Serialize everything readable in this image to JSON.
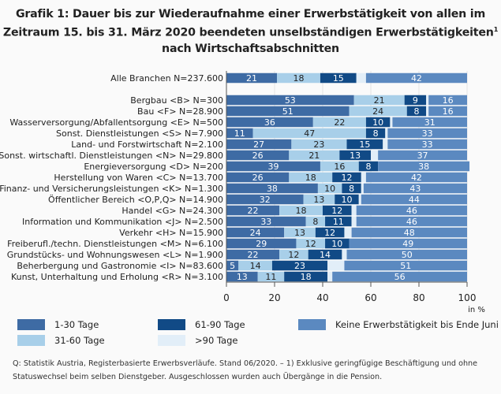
{
  "chart_data": {
    "type": "bar",
    "orientation": "horizontal",
    "stacked": true,
    "title_lines": [
      "Grafik 1: Dauer bis zur Wiederaufnahme einer Erwerbstätigkeit von allen im",
      "Zeitraum 15. bis 31. März 2020 beendeten unselbständigen Erwerbstätigkeiten",
      "nach Wirtschaftsabschnitten"
    ],
    "title_footnote_mark": "1",
    "xlabel": "in %",
    "xlim": [
      0,
      100
    ],
    "xticks": [
      "0",
      "20",
      "40",
      "60",
      "80",
      "100"
    ],
    "grid": true,
    "legend_position": "bottom",
    "categories": [
      "Alle Branchen N=237.600",
      "Bergbau <B> N=300",
      "Bau <F> N=28.900",
      "Wasserversorgung/Abfallentsorgung <E> N=500",
      "Sonst. Dienstleistungen <S> N=7.900",
      "Land- und Forstwirtschaft N=2.100",
      "Sonst. wirtschaftl. Dienstleistungen <N> N=29.800",
      "Energieversorgung <D> N=200",
      "Herstellung von Waren <C> N=13.700",
      "Finanz- und Versicherungsleistungen <K> N=1.300",
      "Öffentlicher Bereich <O,P,Q> N=14.900",
      "Handel <G> N=24.300",
      "Information und Kommunikation <J> N=2.500",
      "Verkehr <H> N=15.900",
      "Freiberufl./techn. Dienstleistungen <M> N=6.100",
      "Grundstücks- und Wohnungswesen <L> N=1.900",
      "Beherbergung und Gastronomie <I> N=83.600",
      "Kunst, Unterhaltung und Erholung <R> N=3.100"
    ],
    "series": [
      {
        "name": "1-30 Tage",
        "color": "#3e6ba4",
        "labeled": true,
        "values": [
          21,
          53,
          51,
          36,
          11,
          27,
          26,
          39,
          26,
          38,
          32,
          22,
          33,
          24,
          29,
          22,
          5,
          13
        ]
      },
      {
        "name": "31-60 Tage",
        "color": "#a8cfe9",
        "labeled": true,
        "values": [
          18,
          21,
          24,
          22,
          47,
          23,
          21,
          16,
          18,
          10,
          13,
          18,
          8,
          13,
          12,
          12,
          14,
          11
        ]
      },
      {
        "name": "61-90 Tage",
        "color": "#114a86",
        "labeled": true,
        "values": [
          15,
          9,
          8,
          10,
          8,
          15,
          13,
          8,
          12,
          8,
          10,
          12,
          11,
          12,
          10,
          14,
          23,
          18
        ]
      },
      {
        "name": ">90 Tage",
        "color": "#e2eef8",
        "labeled": false,
        "values": [
          4,
          1,
          1,
          1,
          1,
          2,
          3,
          0,
          2,
          1,
          1,
          2,
          2,
          3,
          0,
          2,
          7,
          2
        ]
      },
      {
        "name": "Keine Erwerbstätigkeit bis Ende Juni",
        "color": "#5b89c0",
        "labeled": true,
        "values": [
          42,
          16,
          16,
          31,
          33,
          33,
          37,
          38,
          42,
          43,
          44,
          46,
          46,
          48,
          49,
          50,
          51,
          56
        ]
      }
    ]
  },
  "footnote_lines": [
    "Q: Statistik Austria, Registerbasierte Erwerbsverläufe. Stand 06/2020. – 1) Exklusive geringfügige Beschäftigung und ohne",
    "Statuswechsel beim selben Dienstgeber. Ausgeschlossen wurden auch Übergänge in die Pension."
  ]
}
